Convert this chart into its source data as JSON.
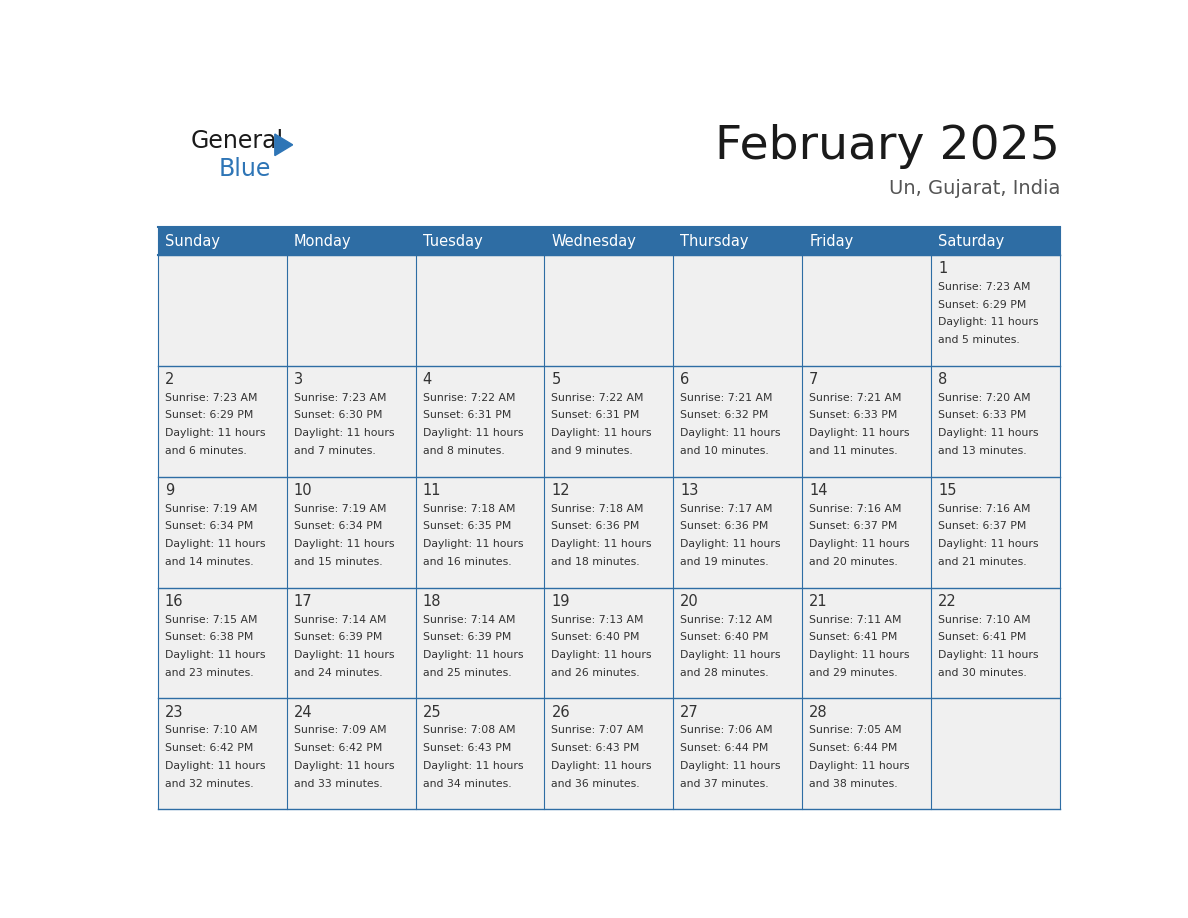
{
  "title": "February 2025",
  "subtitle": "Un, Gujarat, India",
  "header_color": "#2E6DA4",
  "header_text_color": "#FFFFFF",
  "cell_bg_color": "#F0F0F0",
  "border_color": "#2E6DA4",
  "day_names": [
    "Sunday",
    "Monday",
    "Tuesday",
    "Wednesday",
    "Thursday",
    "Friday",
    "Saturday"
  ],
  "days": [
    {
      "day": 1,
      "col": 6,
      "row": 0,
      "sunrise": "7:23 AM",
      "sunset": "6:29 PM",
      "daylight": "11 hours and 5 minutes."
    },
    {
      "day": 2,
      "col": 0,
      "row": 1,
      "sunrise": "7:23 AM",
      "sunset": "6:29 PM",
      "daylight": "11 hours and 6 minutes."
    },
    {
      "day": 3,
      "col": 1,
      "row": 1,
      "sunrise": "7:23 AM",
      "sunset": "6:30 PM",
      "daylight": "11 hours and 7 minutes."
    },
    {
      "day": 4,
      "col": 2,
      "row": 1,
      "sunrise": "7:22 AM",
      "sunset": "6:31 PM",
      "daylight": "11 hours and 8 minutes."
    },
    {
      "day": 5,
      "col": 3,
      "row": 1,
      "sunrise": "7:22 AM",
      "sunset": "6:31 PM",
      "daylight": "11 hours and 9 minutes."
    },
    {
      "day": 6,
      "col": 4,
      "row": 1,
      "sunrise": "7:21 AM",
      "sunset": "6:32 PM",
      "daylight": "11 hours and 10 minutes."
    },
    {
      "day": 7,
      "col": 5,
      "row": 1,
      "sunrise": "7:21 AM",
      "sunset": "6:33 PM",
      "daylight": "11 hours and 11 minutes."
    },
    {
      "day": 8,
      "col": 6,
      "row": 1,
      "sunrise": "7:20 AM",
      "sunset": "6:33 PM",
      "daylight": "11 hours and 13 minutes."
    },
    {
      "day": 9,
      "col": 0,
      "row": 2,
      "sunrise": "7:19 AM",
      "sunset": "6:34 PM",
      "daylight": "11 hours and 14 minutes."
    },
    {
      "day": 10,
      "col": 1,
      "row": 2,
      "sunrise": "7:19 AM",
      "sunset": "6:34 PM",
      "daylight": "11 hours and 15 minutes."
    },
    {
      "day": 11,
      "col": 2,
      "row": 2,
      "sunrise": "7:18 AM",
      "sunset": "6:35 PM",
      "daylight": "11 hours and 16 minutes."
    },
    {
      "day": 12,
      "col": 3,
      "row": 2,
      "sunrise": "7:18 AM",
      "sunset": "6:36 PM",
      "daylight": "11 hours and 18 minutes."
    },
    {
      "day": 13,
      "col": 4,
      "row": 2,
      "sunrise": "7:17 AM",
      "sunset": "6:36 PM",
      "daylight": "11 hours and 19 minutes."
    },
    {
      "day": 14,
      "col": 5,
      "row": 2,
      "sunrise": "7:16 AM",
      "sunset": "6:37 PM",
      "daylight": "11 hours and 20 minutes."
    },
    {
      "day": 15,
      "col": 6,
      "row": 2,
      "sunrise": "7:16 AM",
      "sunset": "6:37 PM",
      "daylight": "11 hours and 21 minutes."
    },
    {
      "day": 16,
      "col": 0,
      "row": 3,
      "sunrise": "7:15 AM",
      "sunset": "6:38 PM",
      "daylight": "11 hours and 23 minutes."
    },
    {
      "day": 17,
      "col": 1,
      "row": 3,
      "sunrise": "7:14 AM",
      "sunset": "6:39 PM",
      "daylight": "11 hours and 24 minutes."
    },
    {
      "day": 18,
      "col": 2,
      "row": 3,
      "sunrise": "7:14 AM",
      "sunset": "6:39 PM",
      "daylight": "11 hours and 25 minutes."
    },
    {
      "day": 19,
      "col": 3,
      "row": 3,
      "sunrise": "7:13 AM",
      "sunset": "6:40 PM",
      "daylight": "11 hours and 26 minutes."
    },
    {
      "day": 20,
      "col": 4,
      "row": 3,
      "sunrise": "7:12 AM",
      "sunset": "6:40 PM",
      "daylight": "11 hours and 28 minutes."
    },
    {
      "day": 21,
      "col": 5,
      "row": 3,
      "sunrise": "7:11 AM",
      "sunset": "6:41 PM",
      "daylight": "11 hours and 29 minutes."
    },
    {
      "day": 22,
      "col": 6,
      "row": 3,
      "sunrise": "7:10 AM",
      "sunset": "6:41 PM",
      "daylight": "11 hours and 30 minutes."
    },
    {
      "day": 23,
      "col": 0,
      "row": 4,
      "sunrise": "7:10 AM",
      "sunset": "6:42 PM",
      "daylight": "11 hours and 32 minutes."
    },
    {
      "day": 24,
      "col": 1,
      "row": 4,
      "sunrise": "7:09 AM",
      "sunset": "6:42 PM",
      "daylight": "11 hours and 33 minutes."
    },
    {
      "day": 25,
      "col": 2,
      "row": 4,
      "sunrise": "7:08 AM",
      "sunset": "6:43 PM",
      "daylight": "11 hours and 34 minutes."
    },
    {
      "day": 26,
      "col": 3,
      "row": 4,
      "sunrise": "7:07 AM",
      "sunset": "6:43 PM",
      "daylight": "11 hours and 36 minutes."
    },
    {
      "day": 27,
      "col": 4,
      "row": 4,
      "sunrise": "7:06 AM",
      "sunset": "6:44 PM",
      "daylight": "11 hours and 37 minutes."
    },
    {
      "day": 28,
      "col": 5,
      "row": 4,
      "sunrise": "7:05 AM",
      "sunset": "6:44 PM",
      "daylight": "11 hours and 38 minutes."
    }
  ],
  "n_rows": 5,
  "n_cols": 7,
  "logo_text_general": "General",
  "logo_text_blue": "Blue",
  "logo_general_color": "#1a1a1a",
  "logo_blue_color": "#2E75B6"
}
